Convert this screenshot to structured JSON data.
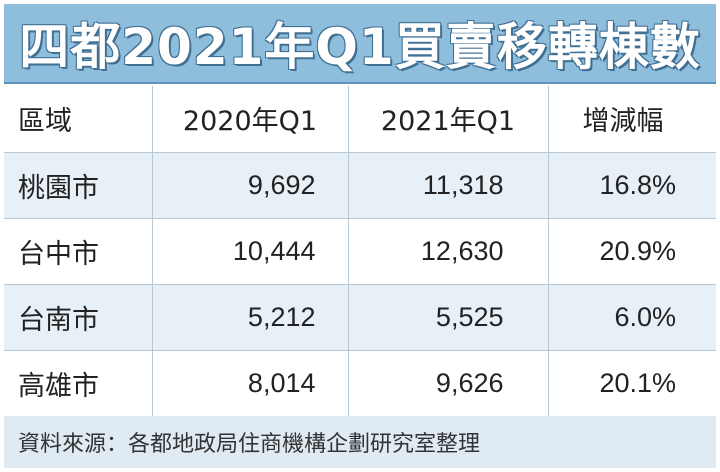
{
  "chart_data": {
    "type": "table",
    "title": "四都2021年Q1買賣移轉棟數",
    "columns": [
      "區域",
      "2020年Q1",
      "2021年Q1",
      "增減幅"
    ],
    "rows": [
      {
        "region": "桃園市",
        "q1_2020": "9,692",
        "q1_2021": "11,318",
        "change": "16.8%"
      },
      {
        "region": "台中市",
        "q1_2020": "10,444",
        "q1_2021": "12,630",
        "change": "20.9%"
      },
      {
        "region": "台南市",
        "q1_2020": "5,212",
        "q1_2021": "5,525",
        "change": "6.0%"
      },
      {
        "region": "高雄市",
        "q1_2020": "8,014",
        "q1_2021": "9,626",
        "change": "20.1%"
      }
    ],
    "source": "資料來源：各都地政局住商機構企劃研究室整理"
  },
  "colors": {
    "title_bar": "#8fbddc",
    "title_text": "#ffffff",
    "row_stripe": "#e7f0f7",
    "footer_bg": "#dfeaf3",
    "grid_line": "#b7c7d3"
  }
}
